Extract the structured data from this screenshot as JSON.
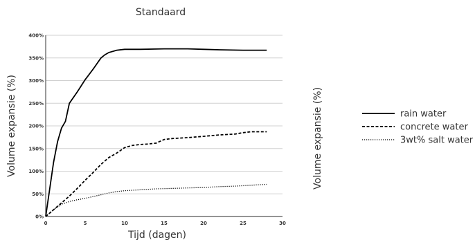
{
  "chart_data": {
    "type": "line",
    "title": "Standaard",
    "xlabel": "Tijd (dagen)",
    "ylabel": "Volume expansie (%)",
    "right_ylabel": "Volume expansie (%)",
    "xlim": [
      0,
      30
    ],
    "ylim": [
      0,
      400
    ],
    "x_ticks": [
      0,
      5,
      10,
      15,
      20,
      25,
      30
    ],
    "y_ticks": [
      0,
      50,
      100,
      150,
      200,
      250,
      300,
      350,
      400
    ],
    "y_tick_suffix": "%",
    "grid": "horizontal",
    "legend_position": "right",
    "series": [
      {
        "name": "rain water",
        "line_style": "solid",
        "x": [
          0,
          0.5,
          1,
          1.5,
          2,
          2.5,
          3,
          4,
          5,
          6,
          7,
          7.5,
          8,
          9,
          10,
          12,
          15,
          18,
          20,
          22,
          25,
          28
        ],
        "y": [
          0,
          60,
          120,
          165,
          195,
          210,
          250,
          275,
          302,
          325,
          350,
          357,
          362,
          367,
          369,
          369,
          370,
          370,
          369,
          368,
          367,
          367
        ]
      },
      {
        "name": "concrete water",
        "line_style": "dashed",
        "x": [
          0,
          1,
          2,
          3,
          4,
          5,
          6,
          7,
          8,
          9,
          10,
          11,
          12,
          13,
          14,
          15,
          16,
          18,
          20,
          22,
          24,
          25,
          26,
          28
        ],
        "y": [
          0,
          15,
          30,
          45,
          62,
          80,
          97,
          115,
          130,
          140,
          152,
          157,
          159,
          160,
          162,
          170,
          172,
          174,
          177,
          180,
          182,
          185,
          187,
          187
        ]
      },
      {
        "name": "3wt% salt water",
        "line_style": "dotted",
        "x": [
          0,
          1,
          2,
          3,
          4,
          5,
          6,
          7,
          8,
          9,
          10,
          12,
          14,
          16,
          18,
          20,
          22,
          24,
          26,
          28
        ],
        "y": [
          0,
          15,
          27,
          33,
          37,
          40,
          44,
          48,
          52,
          55,
          57,
          59,
          61,
          62,
          63,
          64,
          66,
          67,
          69,
          71
        ]
      }
    ]
  }
}
